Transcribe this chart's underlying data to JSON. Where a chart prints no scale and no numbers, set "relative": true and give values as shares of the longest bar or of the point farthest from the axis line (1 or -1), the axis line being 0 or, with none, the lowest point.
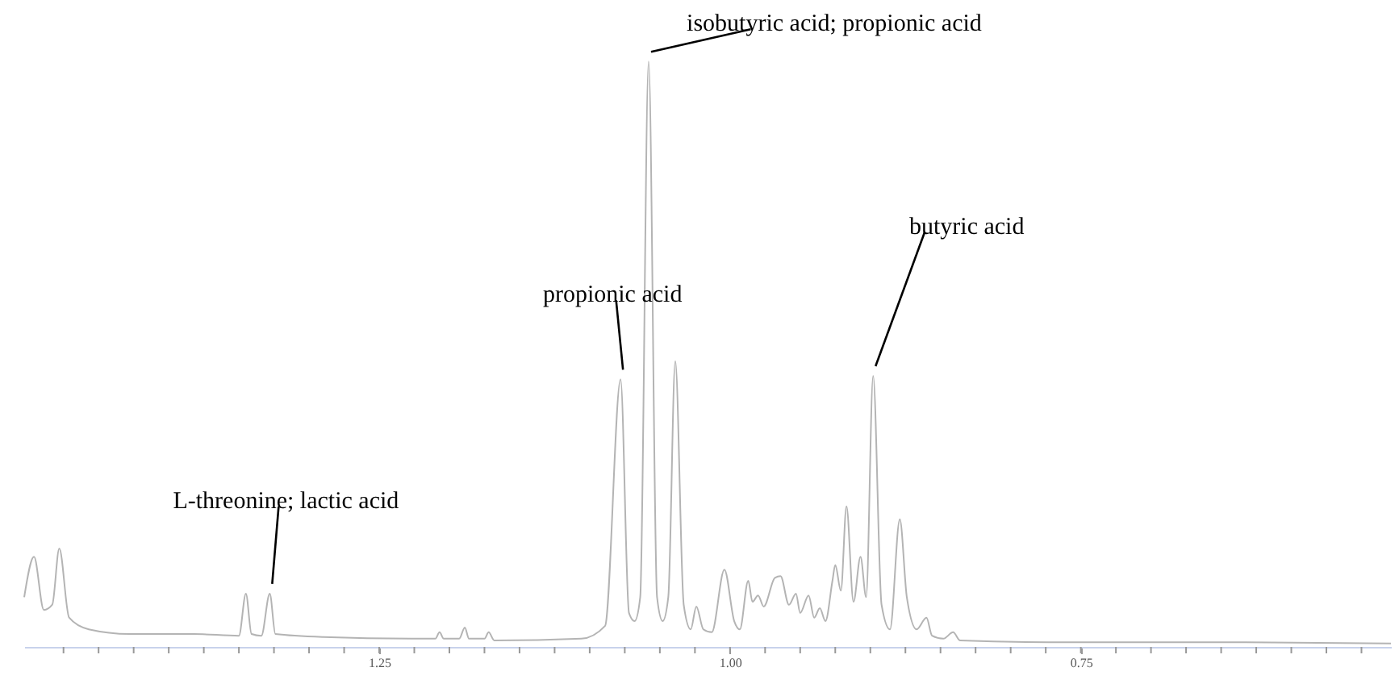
{
  "chart_data": {
    "type": "line",
    "relative": true,
    "tick_labels": "x",
    "grid": false,
    "xlim": [
      1.503,
      0.529
    ],
    "xticks": [
      {
        "value": 1.475,
        "label": null
      },
      {
        "value": 1.45,
        "label": null
      },
      {
        "value": 1.425,
        "label": null
      },
      {
        "value": 1.4,
        "label": null
      },
      {
        "value": 1.375,
        "label": null
      },
      {
        "value": 1.35,
        "label": null
      },
      {
        "value": 1.325,
        "label": null
      },
      {
        "value": 1.3,
        "label": null
      },
      {
        "value": 1.275,
        "label": null
      },
      {
        "value": 1.25,
        "label": "1.25"
      },
      {
        "value": 1.225,
        "label": null
      },
      {
        "value": 1.2,
        "label": null
      },
      {
        "value": 1.175,
        "label": null
      },
      {
        "value": 1.15,
        "label": null
      },
      {
        "value": 1.125,
        "label": null
      },
      {
        "value": 1.1,
        "label": null
      },
      {
        "value": 1.075,
        "label": null
      },
      {
        "value": 1.05,
        "label": null
      },
      {
        "value": 1.025,
        "label": null
      },
      {
        "value": 1.0,
        "label": "1.00"
      },
      {
        "value": 0.975,
        "label": null
      },
      {
        "value": 0.95,
        "label": null
      },
      {
        "value": 0.925,
        "label": null
      },
      {
        "value": 0.9,
        "label": null
      },
      {
        "value": 0.875,
        "label": null
      },
      {
        "value": 0.85,
        "label": null
      },
      {
        "value": 0.825,
        "label": null
      },
      {
        "value": 0.8,
        "label": null
      },
      {
        "value": 0.775,
        "label": null
      },
      {
        "value": 0.75,
        "label": "0.75"
      },
      {
        "value": 0.725,
        "label": null
      },
      {
        "value": 0.7,
        "label": null
      },
      {
        "value": 0.675,
        "label": null
      },
      {
        "value": 0.65,
        "label": null
      },
      {
        "value": 0.625,
        "label": null
      },
      {
        "value": 0.6,
        "label": null
      },
      {
        "value": 0.575,
        "label": null
      },
      {
        "value": 0.55,
        "label": null
      }
    ],
    "x": [
      1.503,
      1.496,
      1.489,
      1.483,
      1.478,
      1.471,
      1.457,
      1.428,
      1.382,
      1.35,
      1.345,
      1.341,
      1.334,
      1.328,
      1.324,
      1.29,
      1.21,
      1.207,
      1.204,
      1.193,
      1.189,
      1.186,
      1.175,
      1.172,
      1.168,
      1.106,
      1.089,
      1.078,
      1.072,
      1.068,
      1.064,
      1.058,
      1.052,
      1.048,
      1.044,
      1.039,
      1.033,
      1.028,
      1.024,
      1.019,
      1.013,
      1.004,
      0.997,
      0.993,
      0.987,
      0.984,
      0.98,
      0.976,
      0.968,
      0.964,
      0.958,
      0.953,
      0.95,
      0.944,
      0.94,
      0.936,
      0.932,
      0.927,
      0.925,
      0.921,
      0.917,
      0.912,
      0.907,
      0.903,
      0.898,
      0.892,
      0.886,
      0.879,
      0.874,
      0.867,
      0.86,
      0.856,
      0.848,
      0.841,
      0.836,
      0.773,
      0.647,
      0.529
    ],
    "series": [
      {
        "color": "#b4b4b4",
        "values": [
          0.085,
          0.154,
          0.063,
          0.072,
          0.168,
          0.05,
          0.03,
          0.022,
          0.022,
          0.019,
          0.091,
          0.022,
          0.019,
          0.091,
          0.022,
          0.017,
          0.014,
          0.025,
          0.014,
          0.014,
          0.033,
          0.014,
          0.014,
          0.025,
          0.011,
          0.014,
          0.036,
          0.457,
          0.058,
          0.044,
          0.085,
          1,
          0.085,
          0.044,
          0.085,
          0.488,
          0.072,
          0.03,
          0.069,
          0.03,
          0.025,
          0.132,
          0.044,
          0.03,
          0.113,
          0.077,
          0.088,
          0.069,
          0.118,
          0.121,
          0.072,
          0.091,
          0.058,
          0.088,
          0.05,
          0.066,
          0.044,
          0.113,
          0.14,
          0.096,
          0.24,
          0.077,
          0.154,
          0.085,
          0.463,
          0.072,
          0.03,
          0.218,
          0.085,
          0.03,
          0.05,
          0.019,
          0.014,
          0.025,
          0.011,
          0.008,
          0.008,
          0.006
        ]
      }
    ],
    "annotations": [
      {
        "text": "L-threonine; lactic acid",
        "x": 1.328,
        "y": 0.091
      },
      {
        "text": "propionic acid",
        "x": 1.078,
        "y": 0.457
      },
      {
        "text": "isobutyric acid; propionic acid",
        "x": 1.058,
        "y": 1
      },
      {
        "text": "butyric acid",
        "x": 0.898,
        "y": 0.463
      }
    ]
  }
}
